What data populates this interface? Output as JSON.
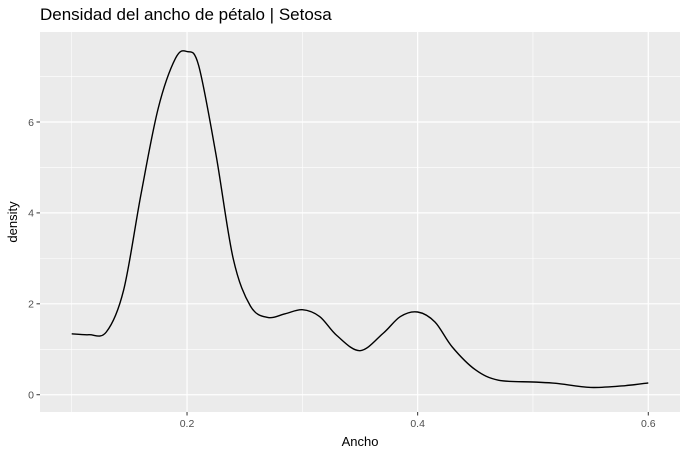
{
  "chart_data": {
    "type": "line",
    "title": "Densidad del ancho de pétalo | Setosa",
    "xlabel": "Ancho",
    "ylabel": "density",
    "xlim": [
      0.0725,
      0.6275
    ],
    "ylim": [
      -0.38,
      7.98
    ],
    "x_ticks": [
      0.2,
      0.4,
      0.6
    ],
    "x_tick_labels": [
      "0.2",
      "0.4",
      "0.6"
    ],
    "y_ticks": [
      0,
      2,
      4,
      6
    ],
    "y_tick_labels": [
      "0",
      "2",
      "4",
      "6"
    ],
    "grid": true,
    "series": [
      {
        "color": "#000000",
        "x": [
          0.1,
          0.115,
          0.13,
          0.145,
          0.16,
          0.175,
          0.19,
          0.2,
          0.21,
          0.225,
          0.24,
          0.255,
          0.27,
          0.285,
          0.3,
          0.315,
          0.33,
          0.35,
          0.37,
          0.385,
          0.4,
          0.415,
          0.43,
          0.45,
          0.47,
          0.5,
          0.52,
          0.55,
          0.58,
          0.6
        ],
        "y": [
          1.34,
          1.32,
          1.38,
          2.3,
          4.4,
          6.3,
          7.4,
          7.55,
          7.25,
          5.3,
          3.0,
          1.95,
          1.7,
          1.78,
          1.87,
          1.72,
          1.3,
          0.97,
          1.35,
          1.72,
          1.82,
          1.6,
          1.05,
          0.55,
          0.32,
          0.28,
          0.25,
          0.16,
          0.2,
          0.26
        ]
      }
    ]
  }
}
